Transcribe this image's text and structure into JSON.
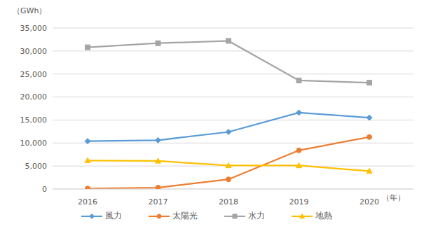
{
  "chart_data": {
    "type": "line",
    "y_label": "（GWh）",
    "x_label": "（年）",
    "categories": [
      "2016",
      "2017",
      "2018",
      "2019",
      "2020"
    ],
    "series": [
      {
        "name": "風力",
        "color": "#5B9BD5",
        "marker": "diamond",
        "values": [
          10400,
          10600,
          12400,
          16600,
          15500
        ]
      },
      {
        "name": "太陽光",
        "color": "#ED7D31",
        "marker": "circle",
        "values": [
          100,
          300,
          2100,
          8400,
          11300
        ]
      },
      {
        "name": "水力",
        "color": "#A5A5A5",
        "marker": "square",
        "values": [
          30800,
          31700,
          32200,
          23600,
          23100
        ]
      },
      {
        "name": "地熱",
        "color": "#FFC000",
        "marker": "triangle",
        "values": [
          6200,
          6100,
          5100,
          5100,
          3900
        ]
      }
    ],
    "ylim": [
      0,
      35000
    ],
    "yticks": [
      0,
      {
        "value": 5000,
        "label": "5,000"
      },
      {
        "value": 10000,
        "label": "10,000"
      },
      {
        "value": 15000,
        "label": "15,000"
      },
      {
        "value": 20000,
        "label": "20,000"
      },
      {
        "value": 25000,
        "label": "25,000"
      },
      {
        "value": 30000,
        "label": "30,000"
      },
      {
        "value": 35000,
        "label": "35,000"
      }
    ],
    "grid": true,
    "legend": "bottom"
  }
}
